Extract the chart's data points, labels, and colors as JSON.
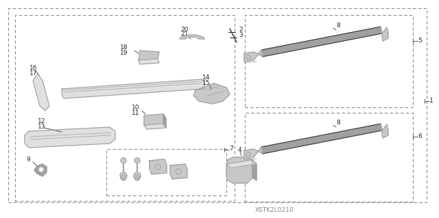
{
  "bg_color": "#ffffff",
  "watermark": "XSTK2L0210",
  "gray1": "#c8c8c8",
  "gray2": "#a0a0a0",
  "gray3": "#e0e0e0",
  "black": "#303030",
  "lc": "#555555",
  "fs": 6.5,
  "wm_fs": 6.5
}
